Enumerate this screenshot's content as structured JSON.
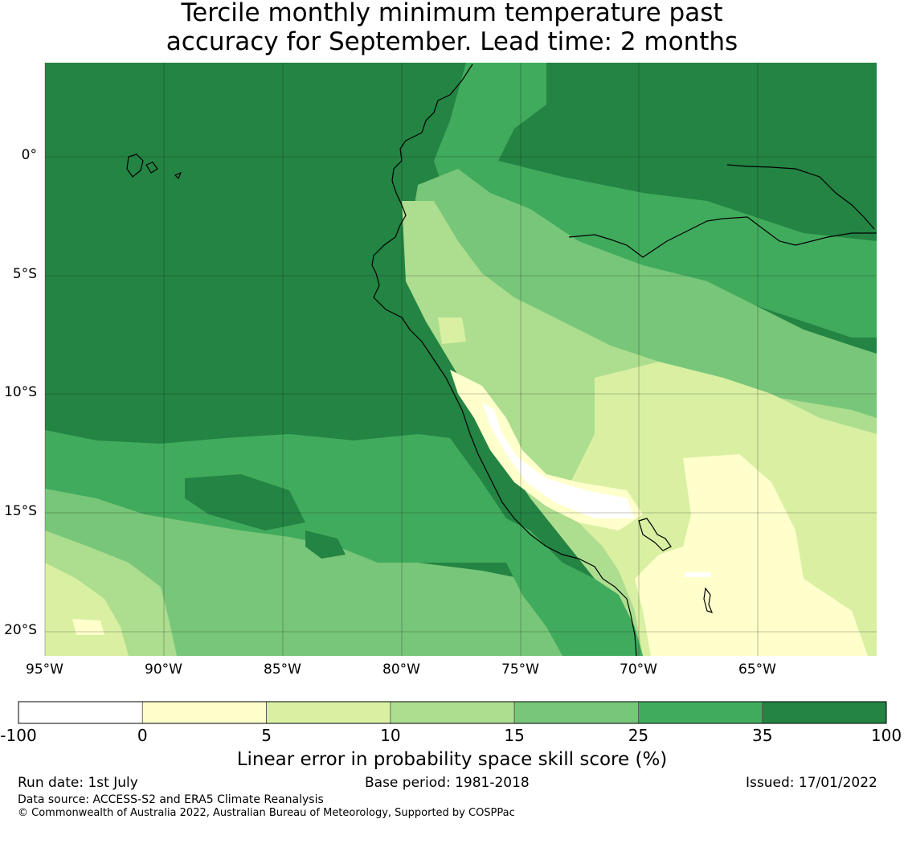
{
  "title": {
    "line1": "Tercile monthly minimum temperature past",
    "line2": "accuracy for September. Lead time: 2 months"
  },
  "axes": {
    "lon_labels": [
      "95°W",
      "90°W",
      "85°W",
      "80°W",
      "75°W",
      "70°W",
      "65°W"
    ],
    "lat_labels": [
      "0°",
      "5°S",
      "10°S",
      "15°S",
      "20°S"
    ]
  },
  "colorbar": {
    "title": "Linear error in probability space skill score (%)",
    "bins": [
      "-100",
      "0",
      "5",
      "10",
      "15",
      "25",
      "35",
      "100"
    ],
    "colors": [
      "#ffffff",
      "#ffffcc",
      "#d9f0a3",
      "#addd8e",
      "#78c679",
      "#41ab5d",
      "#238443"
    ]
  },
  "footer": {
    "run_date": "Run date: 1st July",
    "base_period": "Base period: 1981-2018",
    "issued": "Issued: 17/01/2022",
    "data_source": "Data source: ACCESS-S2 and ERA5 Climate Reanalysis",
    "copyright": "© Commonwealth of Australia 2022, Australian Bureau of Meteorology, Supported by COSPPac"
  }
}
